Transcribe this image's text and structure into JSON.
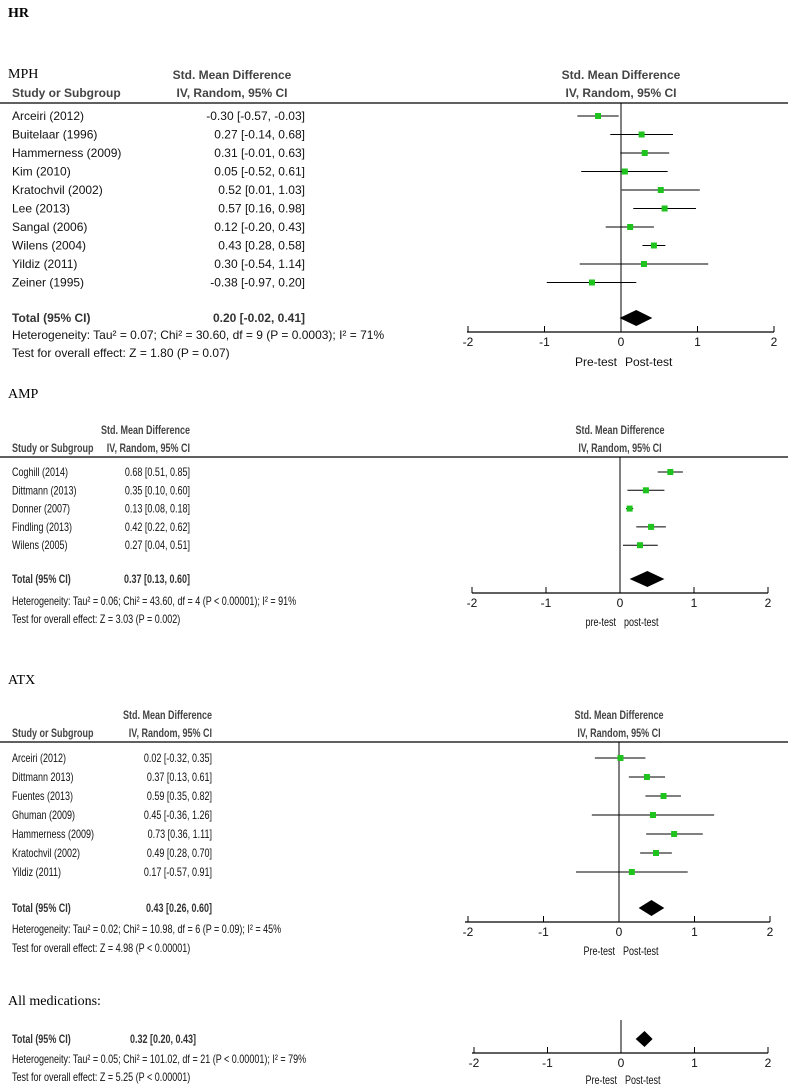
{
  "figure_title": "HR",
  "colors": {
    "study_marker": "#1ec31e",
    "pooled_diamond": "#000000",
    "lines": "#000000"
  },
  "chart_data": [
    {
      "type": "forest",
      "title": "MPH",
      "col_study_header": "Study or Subgroup",
      "col_effect_header_1": "Std. Mean Difference",
      "col_effect_header_2": "IV, Random, 95% CI",
      "studies": [
        {
          "name": "Arceiri (2012)",
          "est": -0.3,
          "lo": -0.57,
          "hi": -0.03,
          "label": "-0.30 [-0.57, -0.03]"
        },
        {
          "name": "Buitelaar (1996)",
          "est": 0.27,
          "lo": -0.14,
          "hi": 0.68,
          "label": "0.27 [-0.14, 0.68]"
        },
        {
          "name": "Hammerness (2009)",
          "est": 0.31,
          "lo": -0.01,
          "hi": 0.63,
          "label": "0.31 [-0.01, 0.63]"
        },
        {
          "name": "Kim (2010)",
          "est": 0.05,
          "lo": -0.52,
          "hi": 0.61,
          "label": "0.05 [-0.52, 0.61]"
        },
        {
          "name": "Kratochvil (2002)",
          "est": 0.52,
          "lo": 0.01,
          "hi": 1.03,
          "label": "0.52 [0.01, 1.03]"
        },
        {
          "name": "Lee (2013)",
          "est": 0.57,
          "lo": 0.16,
          "hi": 0.98,
          "label": "0.57 [0.16, 0.98]"
        },
        {
          "name": "Sangal (2006)",
          "est": 0.12,
          "lo": -0.2,
          "hi": 0.43,
          "label": "0.12 [-0.20, 0.43]"
        },
        {
          "name": "Wilens (2004)",
          "est": 0.43,
          "lo": 0.28,
          "hi": 0.58,
          "label": "0.43 [0.28, 0.58]"
        },
        {
          "name": "Yildiz (2011)",
          "est": 0.3,
          "lo": -0.54,
          "hi": 1.14,
          "label": "0.30 [-0.54, 1.14]"
        },
        {
          "name": "Zeiner (1995)",
          "est": -0.38,
          "lo": -0.97,
          "hi": 0.2,
          "label": "-0.38 [-0.97, 0.20]"
        }
      ],
      "total": {
        "name": "Total (95% CI)",
        "est": 0.2,
        "lo": -0.02,
        "hi": 0.41,
        "label": "0.20 [-0.02, 0.41]"
      },
      "heterogeneity": "Heterogeneity: Tau² = 0.07; Chi² = 30.60, df = 9 (P = 0.0003); I² = 71%",
      "overall_test": "Test for overall effect: Z = 1.80 (P = 0.07)",
      "xlim": [
        -2,
        2
      ],
      "xticks": [
        "-2",
        "-1",
        "0",
        "1",
        "2"
      ],
      "favours_left": "Pre-test",
      "favours_right": "Post-test"
    },
    {
      "type": "forest",
      "title": "AMP",
      "col_study_header": "Study or Subgroup",
      "col_effect_header_1": "Std. Mean Difference",
      "col_effect_header_2": "IV, Random, 95% CI",
      "studies": [
        {
          "name": "Coghill (2014)",
          "est": 0.68,
          "lo": 0.51,
          "hi": 0.85,
          "label": "0.68 [0.51, 0.85]"
        },
        {
          "name": "Dittmann (2013)",
          "est": 0.35,
          "lo": 0.1,
          "hi": 0.6,
          "label": "0.35 [0.10, 0.60]"
        },
        {
          "name": "Donner (2007)",
          "est": 0.13,
          "lo": 0.08,
          "hi": 0.18,
          "label": "0.13 [0.08, 0.18]"
        },
        {
          "name": "Findling (2013)",
          "est": 0.42,
          "lo": 0.22,
          "hi": 0.62,
          "label": "0.42 [0.22, 0.62]"
        },
        {
          "name": "Wilens (2005)",
          "est": 0.27,
          "lo": 0.04,
          "hi": 0.51,
          "label": "0.27 [0.04, 0.51]"
        }
      ],
      "total": {
        "name": "Total (95% CI)",
        "est": 0.37,
        "lo": 0.13,
        "hi": 0.6,
        "label": "0.37 [0.13, 0.60]"
      },
      "heterogeneity": "Heterogeneity: Tau² = 0.06; Chi² = 43.60, df = 4 (P < 0.00001); I² = 91%",
      "overall_test": "Test for overall effect: Z = 3.03 (P = 0.002)",
      "xlim": [
        -2,
        2
      ],
      "xticks": [
        "-2",
        "-1",
        "0",
        "1",
        "2"
      ],
      "favours_left": "pre-test",
      "favours_right": "post-test"
    },
    {
      "type": "forest",
      "title": "ATX",
      "col_study_header": "Study or Subgroup",
      "col_effect_header_1": "Std. Mean Difference",
      "col_effect_header_2": "IV, Random, 95% CI",
      "studies": [
        {
          "name": "Arceiri  (2012)",
          "est": 0.02,
          "lo": -0.32,
          "hi": 0.35,
          "label": "0.02 [-0.32, 0.35]"
        },
        {
          "name": "Dittmann 2013)",
          "est": 0.37,
          "lo": 0.13,
          "hi": 0.61,
          "label": "0.37 [0.13, 0.61]"
        },
        {
          "name": "Fuentes (2013)",
          "est": 0.59,
          "lo": 0.35,
          "hi": 0.82,
          "label": "0.59 [0.35, 0.82]"
        },
        {
          "name": "Ghuman (2009)",
          "est": 0.45,
          "lo": -0.36,
          "hi": 1.26,
          "label": "0.45 [-0.36, 1.26]"
        },
        {
          "name": "Hammerness   (2009)",
          "est": 0.73,
          "lo": 0.36,
          "hi": 1.11,
          "label": "0.73 [0.36, 1.11]"
        },
        {
          "name": "Kratochvil  (2002)",
          "est": 0.49,
          "lo": 0.28,
          "hi": 0.7,
          "label": "0.49 [0.28, 0.70]"
        },
        {
          "name": "Yildiz  (2011)",
          "est": 0.17,
          "lo": -0.57,
          "hi": 0.91,
          "label": "0.17 [-0.57, 0.91]"
        }
      ],
      "total": {
        "name": "Total (95% CI)",
        "est": 0.43,
        "lo": 0.26,
        "hi": 0.6,
        "label": "0.43 [0.26, 0.60]"
      },
      "heterogeneity": "Heterogeneity: Tau² = 0.02; Chi² = 10.98, df = 6 (P = 0.09); I² = 45%",
      "overall_test": "Test for overall effect: Z = 4.98 (P < 0.00001)",
      "xlim": [
        -2,
        2
      ],
      "xticks": [
        "-2",
        "-1",
        "0",
        "1",
        "2"
      ],
      "favours_left": "Pre-test",
      "favours_right": "Post-test"
    },
    {
      "type": "forest",
      "title": "All medications:",
      "studies": [],
      "total": {
        "name": "Total (95% CI)",
        "est": 0.32,
        "lo": 0.2,
        "hi": 0.43,
        "label": "0.32 [0.20, 0.43]"
      },
      "heterogeneity": "Heterogeneity: Tau² = 0.05; Chi² = 101.02, df = 21 (P < 0.00001); I² = 79%",
      "overall_test": "Test for overall effect: Z = 5.25 (P < 0.00001)",
      "xlim": [
        -2,
        2
      ],
      "xticks": [
        "-2",
        "-1",
        "0",
        "1",
        "2"
      ],
      "favours_left": "Pre-test",
      "favours_right": "Post-test"
    }
  ]
}
